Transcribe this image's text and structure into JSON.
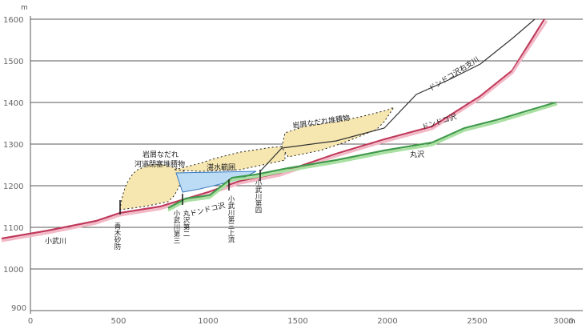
{
  "units": {
    "y": "m",
    "x": "m"
  },
  "y_ticks": [
    "1600",
    "1500",
    "1400",
    "1300",
    "1200",
    "1100",
    "1000",
    "900"
  ],
  "x_ticks": [
    "0",
    "500",
    "1000",
    "1500",
    "2000",
    "2500",
    "3000"
  ],
  "colors": {
    "grid": "#5a5a5a",
    "riverbed": "#c0395a",
    "riverbed_fill": "#f2b8c6",
    "maruzawa": "#3f9a4a",
    "maruzawa_fill": "#a8e0a0",
    "debris_fill": "#f6e6b0",
    "reservoir_fill": "#bcdcf5",
    "outline": "#222222"
  },
  "labels": {
    "komutagawa": "小武川",
    "dondoko": "ドンドコ沢",
    "dondoko_right": "ドンドコ沢右支川",
    "maruzawa": "丸沢",
    "dondoko_lower": "ドンドコ沢",
    "debris_upper": "岩屑なだれ堆積物",
    "debris_lower_1": "岩屑なだれ",
    "debris_lower_2": "河道閉塞堆積物",
    "reservoir": "湛水範囲",
    "aoki": "青木砂防",
    "maruzawa_dam": "丸沢第二",
    "komu3": "小武川第三",
    "komu3_upper": "小武川第三上流",
    "komu4": "小武川第四"
  },
  "chart_data": {
    "type": "line",
    "xlabel": "m",
    "ylabel": "m",
    "xlim": [
      0,
      3000
    ],
    "ylim": [
      900,
      1600
    ],
    "series": [
      {
        "name": "小武川 / ドンドコ沢",
        "points": [
          [
            0,
            1075
          ],
          [
            500,
            1140
          ],
          [
            800,
            1170
          ],
          [
            1000,
            1195
          ],
          [
            1300,
            1232
          ],
          [
            1600,
            1262
          ],
          [
            2000,
            1300
          ],
          [
            2400,
            1350
          ],
          [
            2700,
            1450
          ],
          [
            2890,
            1600
          ]
        ]
      },
      {
        "name": "丸沢",
        "points": [
          [
            800,
            1152
          ],
          [
            1000,
            1180
          ],
          [
            1250,
            1230
          ],
          [
            1600,
            1250
          ],
          [
            2000,
            1270
          ],
          [
            2400,
            1330
          ],
          [
            2700,
            1365
          ],
          [
            2950,
            1400
          ]
        ]
      },
      {
        "name": "ドンドコ沢右支川",
        "points": [
          [
            1330,
            1235
          ],
          [
            1450,
            1300
          ],
          [
            1800,
            1320
          ],
          [
            2000,
            1350
          ],
          [
            2200,
            1440
          ],
          [
            2500,
            1520
          ],
          [
            2700,
            1590
          ],
          [
            2850,
            1600
          ]
        ]
      }
    ]
  }
}
